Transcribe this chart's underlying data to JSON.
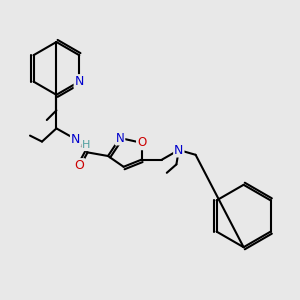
{
  "bg_color": "#e8e8e8",
  "atom_colors": {
    "C": "#000000",
    "N": "#0000cc",
    "O": "#cc0000",
    "H": "#50a0a0"
  },
  "bond_color": "#000000",
  "bond_width": 1.5,
  "figsize": [
    3.0,
    3.0
  ],
  "dpi": 100,
  "font_size": 9
}
